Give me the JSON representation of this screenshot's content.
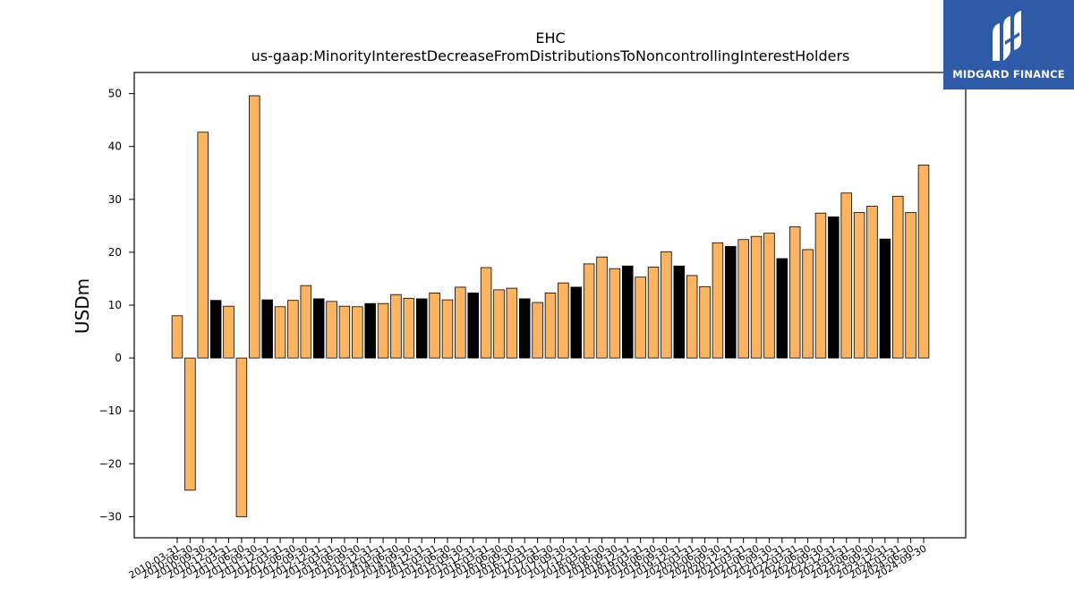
{
  "chart_data": {
    "type": "bar",
    "title": "EHC",
    "subtitle": "us-gaap:MinorityInterestDecreaseFromDistributionsToNoncontrollingInterestHolders",
    "xlabel": "",
    "ylabel": "USDm",
    "ylim": [
      -34,
      54
    ],
    "yticks": [
      -30,
      -20,
      -10,
      0,
      10,
      20,
      30,
      40,
      50
    ],
    "grid": false,
    "colors": {
      "quarter": "#fdb462",
      "year_end": "#000000",
      "edge": "#000000"
    },
    "categories": [
      "2010-03-31",
      "2010-06-30",
      "2010-09-30",
      "2010-12-31",
      "2011-03-31",
      "2011-06-30",
      "2011-09-30",
      "2011-12-31",
      "2012-03-31",
      "2012-06-30",
      "2012-09-30",
      "2012-12-31",
      "2013-03-31",
      "2013-06-30",
      "2013-09-30",
      "2013-12-31",
      "2014-03-31",
      "2014-06-30",
      "2014-09-30",
      "2014-12-31",
      "2015-03-31",
      "2015-06-30",
      "2015-09-30",
      "2015-12-31",
      "2016-03-31",
      "2016-06-30",
      "2016-09-30",
      "2016-12-31",
      "2017-03-31",
      "2017-06-30",
      "2017-09-30",
      "2017-12-31",
      "2018-03-31",
      "2018-06-30",
      "2018-09-30",
      "2018-12-31",
      "2019-03-31",
      "2019-06-30",
      "2019-09-30",
      "2019-12-31",
      "2020-03-31",
      "2020-06-30",
      "2020-09-30",
      "2020-12-31",
      "2021-03-31",
      "2021-06-30",
      "2021-09-30",
      "2021-12-31",
      "2022-03-31",
      "2022-06-30",
      "2022-09-30",
      "2022-12-31",
      "2023-03-31",
      "2023-06-30",
      "2023-09-30",
      "2023-12-31",
      "2024-03-31",
      "2024-06-30",
      "2024-09-30"
    ],
    "values": [
      8.0,
      -25.0,
      42.7,
      10.9,
      9.8,
      -30.0,
      49.6,
      11.0,
      9.7,
      10.9,
      13.7,
      11.2,
      10.7,
      9.8,
      9.7,
      10.3,
      10.3,
      12.0,
      11.3,
      11.2,
      12.3,
      11.0,
      13.4,
      12.3,
      17.1,
      12.9,
      13.2,
      11.2,
      10.5,
      12.3,
      14.2,
      13.4,
      17.8,
      19.1,
      16.9,
      17.4,
      15.3,
      17.2,
      20.1,
      17.4,
      15.6,
      13.5,
      21.8,
      21.1,
      22.4,
      23.0,
      23.6,
      18.8,
      24.8,
      20.5,
      27.4,
      26.7,
      31.2,
      27.5,
      28.7,
      22.5,
      30.6,
      27.5,
      36.5
    ],
    "highlight_year_end": true
  },
  "logo": {
    "text": "MIDGARD FINANCE",
    "icon": "midgard-logo-icon"
  }
}
